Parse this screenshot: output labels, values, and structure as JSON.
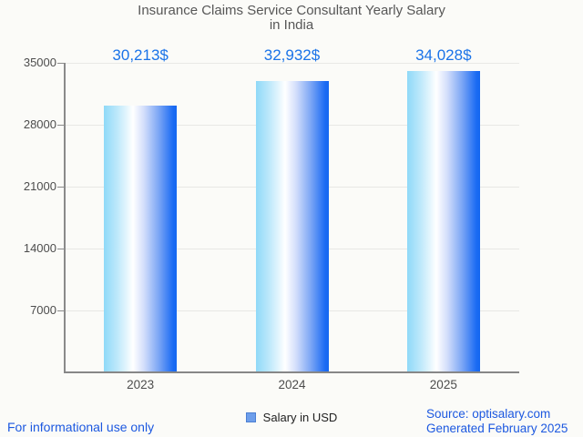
{
  "title": {
    "lines": [
      "Insurance Claims Service Consultant Yearly Salary",
      "in India"
    ]
  },
  "chart_data": {
    "type": "bar",
    "title": "Insurance Claims Service Consultant Yearly Salary in India",
    "categories": [
      "2023",
      "2024",
      "2025"
    ],
    "values": [
      30213,
      32932,
      34028
    ],
    "value_labels": [
      "30,213$",
      "32,932$",
      "34,028$"
    ],
    "xlabel": "",
    "ylabel": "",
    "ylim": [
      0,
      35000
    ],
    "y_ticks": [
      35000,
      28000,
      21000,
      14000,
      7000
    ],
    "grid": true,
    "legend": {
      "label": "Salary in USD",
      "position": "bottom-center"
    },
    "bar_gradient": [
      "#8fd9f8",
      "#c2eafb",
      "#ffffff",
      "#d3defb",
      "#7da7f5",
      "#1b6bf3",
      "#1467f0"
    ],
    "value_label_color": "#1a73e8"
  },
  "footer": {
    "left_note": "For informational use only",
    "source": "Source: optisalary.com",
    "generated": "Generated February 2025"
  },
  "colors": {
    "background": "#fbfbf8",
    "title_text": "#575757",
    "axis_text": "#4d4d4d",
    "axis_line": "#8a8a8a",
    "gridline": "#e8e8e5",
    "value_label": "#1a73e8",
    "footer_text": "#1c58e0",
    "legend_swatch_fill": "#6d9eeb",
    "legend_swatch_border": "#4c7fd2"
  }
}
